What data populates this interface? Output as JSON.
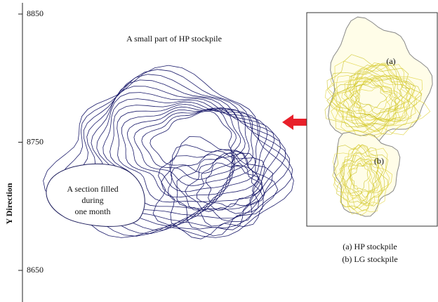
{
  "y_axis": {
    "label": "Y Direction",
    "ticks": [
      8850,
      8750,
      8650
    ]
  },
  "title": "A small part of HP stockpile",
  "section_label": [
    "A section filled",
    "during",
    "one month"
  ],
  "inset": {
    "label_a": "(a)",
    "label_b": "(b)",
    "legend": [
      "(a) HP stockpile",
      "(b) LG stockpile"
    ]
  }
}
